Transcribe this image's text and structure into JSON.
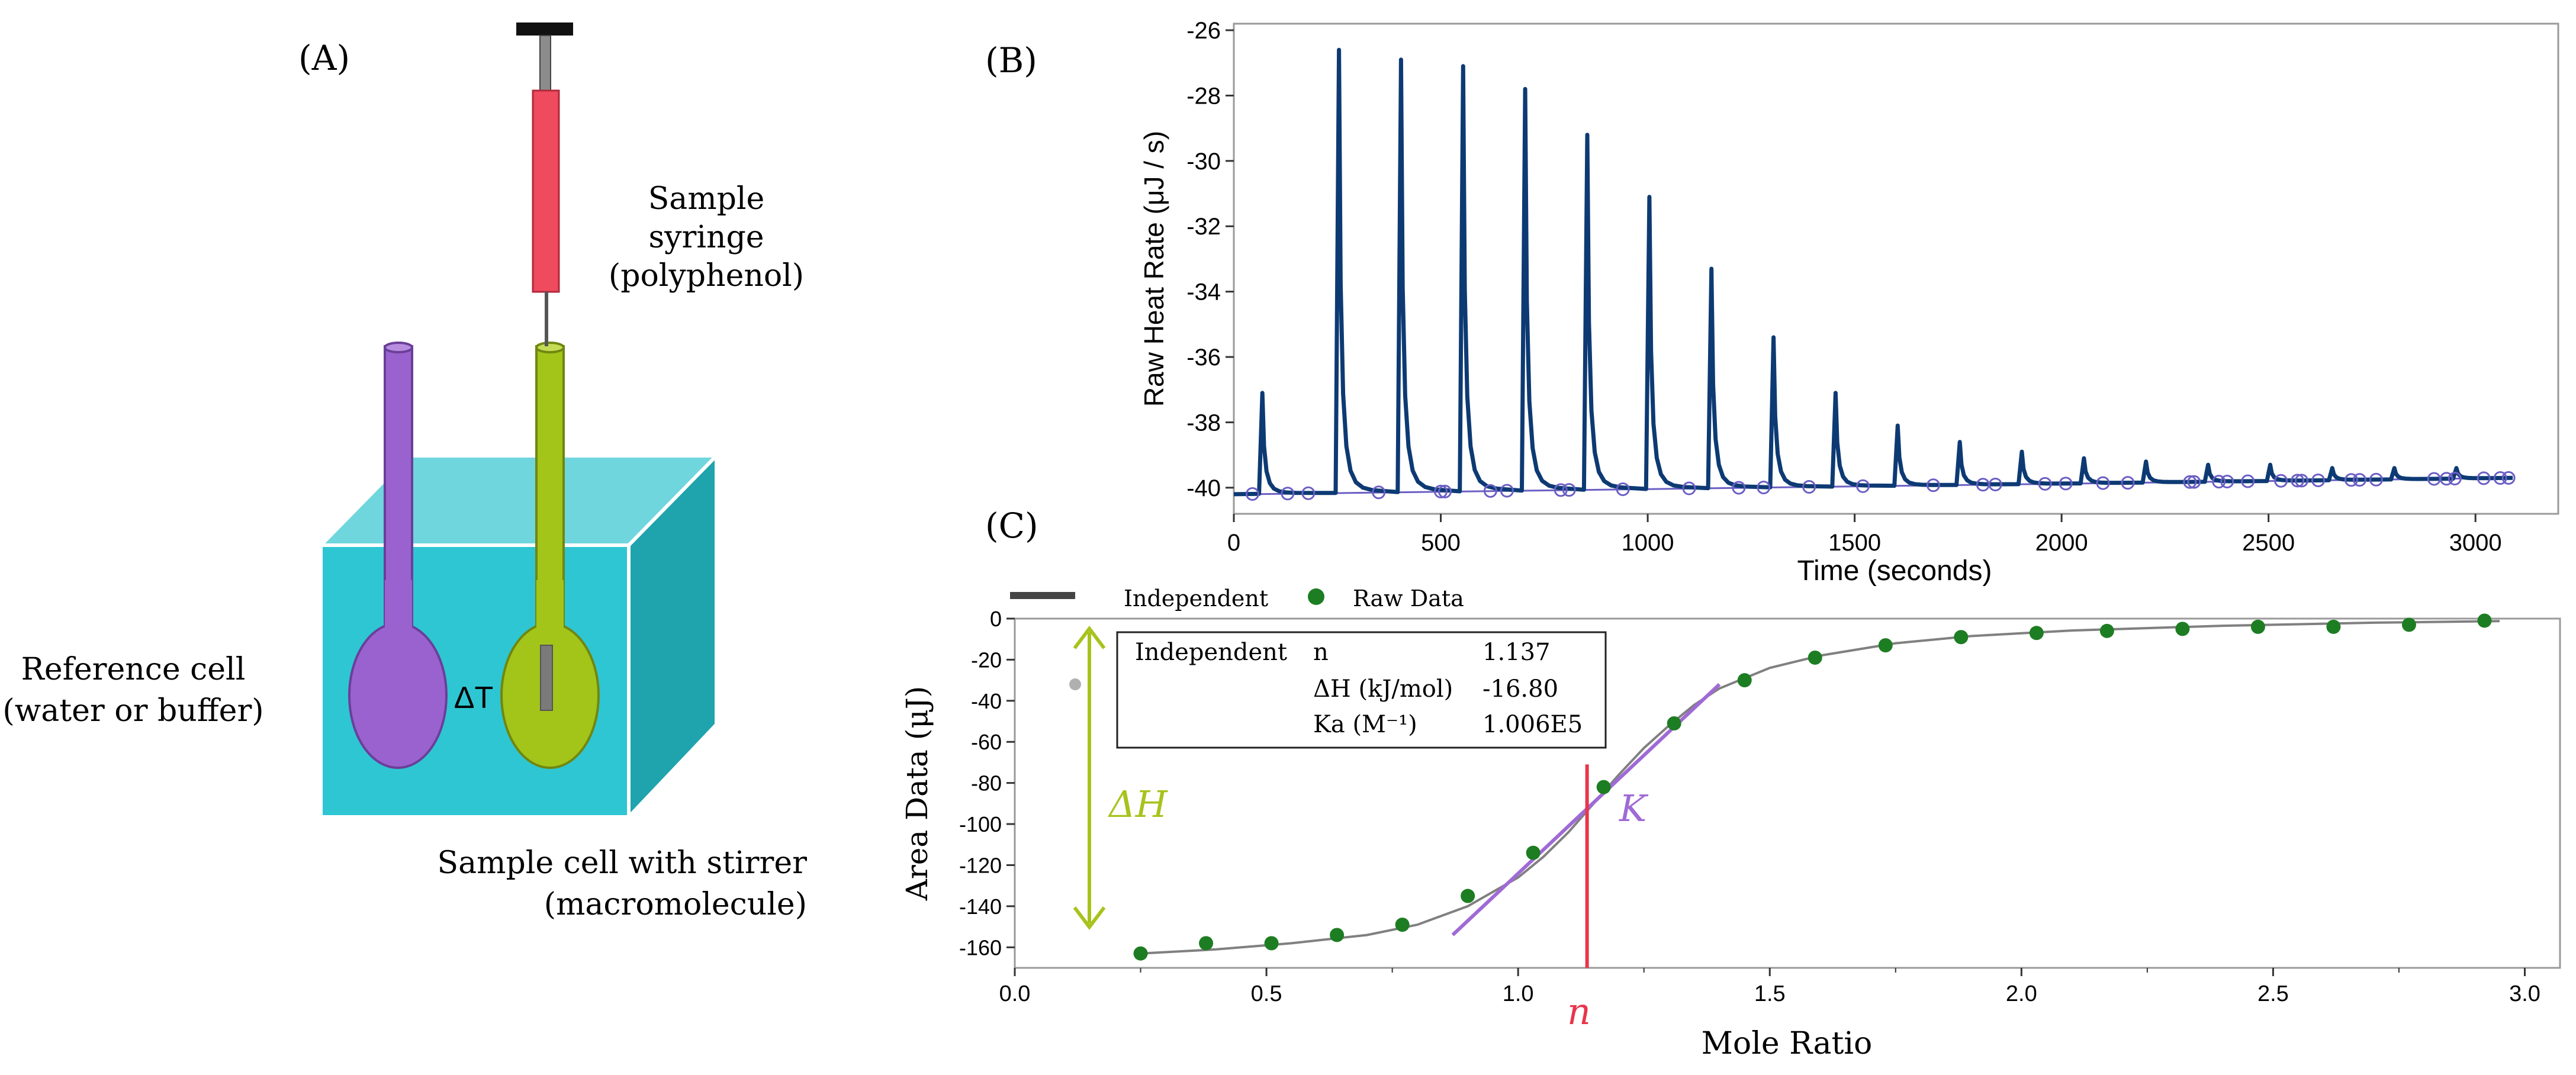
{
  "colors": {
    "cyan_front": "#2ec6d3",
    "cyan_top": "#6fd6de",
    "cyan_side": "#1fa3ad",
    "purple": "#9a62cf",
    "green": "#a3c419",
    "syringe_red": "#f04a5f",
    "trace_blue": "#0d3a73",
    "baseline_purple": "#6b5fc4",
    "fit_gray": "#808080",
    "point_green": "#1d7d22",
    "n_red": "#e8354b",
    "k_purple": "#9f6ad6",
    "dh_green": "#a7c31c"
  },
  "panel_a": {
    "label": "(A)",
    "syringe_label": [
      "Sample",
      "syringe",
      "(polyphenol)"
    ],
    "reference_label": [
      "Reference  cell",
      "(water  or  buffer)"
    ],
    "sample_label": [
      "Sample cell with stirrer",
      "(macromolecule)"
    ],
    "delta_t": "ΔT"
  },
  "panel_b": {
    "label": "(B)"
  },
  "panel_c": {
    "label": "(C)",
    "legend": {
      "fit": "Independent",
      "raw": "Raw Data"
    },
    "table": {
      "model": "Independent",
      "rows": [
        {
          "param": "n",
          "value": "1.137"
        },
        {
          "param": "ΔH (kJ/mol)",
          "value": "-16.80"
        },
        {
          "param": "Ka (M⁻¹)",
          "value": "1.006E5"
        }
      ]
    },
    "annotations": {
      "dh": "ΔH",
      "k": "K",
      "n": "n"
    }
  },
  "chart_data": [
    {
      "type": "line",
      "panel": "B",
      "title": "",
      "xlabel": "Time (seconds)",
      "ylabel": "Raw Heat Rate (μJ / s)",
      "xlim": [
        0,
        3200
      ],
      "ylim": [
        -40.8,
        -25.8
      ],
      "xticks": [
        0,
        500,
        1000,
        1500,
        2000,
        2500,
        3000
      ],
      "yticks": [
        -40,
        -38,
        -36,
        -34,
        -32,
        -30,
        -28,
        -26
      ],
      "baseline": -40.2,
      "injection_times": [
        65,
        250,
        400,
        550,
        700,
        850,
        1000,
        1150,
        1300,
        1450,
        1600,
        1750,
        1900,
        2050,
        2200,
        2350,
        2500,
        2650,
        2800,
        2950
      ],
      "peak_values": [
        -37.1,
        -26.6,
        -26.9,
        -27.1,
        -27.8,
        -29.2,
        -31.1,
        -33.3,
        -35.4,
        -37.1,
        -38.1,
        -38.6,
        -38.9,
        -39.1,
        -39.2,
        -39.3,
        -39.3,
        -39.4,
        -39.4,
        -39.4
      ],
      "baseline_markers": {
        "x": [
          45,
          130,
          180,
          350,
          500,
          510,
          620,
          660,
          790,
          810,
          940,
          1100,
          1220,
          1280,
          1390,
          1520,
          1690,
          1810,
          1840,
          1960,
          2010,
          2100,
          2160,
          2310,
          2320,
          2380,
          2400,
          2450,
          2530,
          2570,
          2580,
          2620,
          2700,
          2720,
          2760,
          2900,
          2930,
          2950,
          3020,
          3060,
          3080
        ]
      }
    },
    {
      "type": "scatter",
      "panel": "C",
      "title": "",
      "xlabel": "Mole Ratio",
      "ylabel": "Area Data (μJ)",
      "xlim": [
        0,
        3.07
      ],
      "ylim": [
        -170,
        0
      ],
      "xticks": [
        0.0,
        0.5,
        1.0,
        1.5,
        2.0,
        2.5,
        3.0
      ],
      "yticks": [
        0,
        -20,
        -40,
        -60,
        -80,
        -100,
        -120,
        -140,
        -160
      ],
      "series": [
        {
          "name": "Raw Data",
          "x": [
            0.25,
            0.38,
            0.51,
            0.64,
            0.77,
            0.9,
            1.03,
            1.17,
            1.31,
            1.45,
            1.59,
            1.73,
            1.88,
            2.03,
            2.17,
            2.32,
            2.47,
            2.62,
            2.77,
            2.92
          ],
          "y": [
            -163,
            -158,
            -158,
            -154,
            -149,
            -135,
            -114,
            -82,
            -51,
            -30,
            -19,
            -13,
            -9,
            -7,
            -6,
            -5,
            -4,
            -4,
            -3,
            -1
          ]
        },
        {
          "name": "Excluded point",
          "x": [
            0.12
          ],
          "y": [
            -32
          ]
        },
        {
          "name": "Independent",
          "n": 1.137,
          "x": [
            0.25,
            0.4,
            0.55,
            0.7,
            0.8,
            0.9,
            1.0,
            1.05,
            1.1,
            1.15,
            1.2,
            1.25,
            1.3,
            1.35,
            1.4,
            1.5,
            1.6,
            1.75,
            1.9,
            2.1,
            2.4,
            2.7,
            2.95
          ],
          "y": [
            -163,
            -161,
            -158,
            -154,
            -149,
            -140,
            -126,
            -116,
            -104,
            -90,
            -76,
            -63,
            -52,
            -42,
            -34,
            -24,
            -18,
            -12,
            -8.5,
            -5.8,
            -3.5,
            -2,
            -1.2
          ]
        }
      ],
      "slope_line": {
        "x": [
          0.87,
          1.4
        ],
        "y": [
          -154,
          -32
        ]
      }
    }
  ]
}
